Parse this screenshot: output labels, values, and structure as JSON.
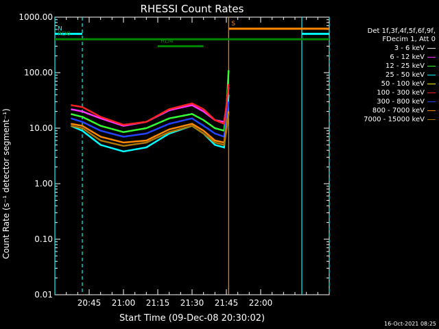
{
  "chart_data": {
    "type": "line",
    "title": "RHESSI Count Rates",
    "xlabel": "Start Time (09-Dec-08 20:30:02)",
    "ylabel": "Count Rate (s⁻¹ detector segment⁻¹)",
    "yscale": "log",
    "ylim": [
      0.01,
      1000
    ],
    "y_ticks": [
      "0.01",
      "0.10",
      "1.00",
      "10.00",
      "100.00",
      "1000.00"
    ],
    "xlim_minutes": [
      0,
      120
    ],
    "x_ticks": [
      {
        "label": "20:45",
        "minute": 15
      },
      {
        "label": "21:00",
        "minute": 30
      },
      {
        "label": "21:15",
        "minute": 45
      },
      {
        "label": "21:30",
        "minute": 60
      },
      {
        "label": "21:45",
        "minute": 75
      },
      {
        "label": "22:00",
        "minute": 90
      }
    ],
    "legend_header": [
      "Det 1f,3f,4f,5f,6f,9f,",
      "FDecim 1, Att 0"
    ],
    "timestamp": "16-Oct-2021 08:25",
    "series": [
      {
        "name": "3 - 6 keV",
        "color": "#e6e6e6",
        "draw": false
      },
      {
        "name": "6 - 12 keV",
        "color": "#ff33ff",
        "draw": true,
        "points": [
          [
            7,
            22
          ],
          [
            12,
            20
          ],
          [
            20,
            15
          ],
          [
            30,
            11
          ],
          [
            40,
            13
          ],
          [
            50,
            21
          ],
          [
            60,
            26
          ],
          [
            65,
            20
          ],
          [
            70,
            14
          ],
          [
            74,
            13
          ],
          [
            75,
            24
          ],
          [
            76,
            55
          ]
        ]
      },
      {
        "name": "12 - 25 keV",
        "color": "#33ff33",
        "draw": true,
        "points": [
          [
            7,
            18
          ],
          [
            12,
            16
          ],
          [
            20,
            11
          ],
          [
            30,
            8.5
          ],
          [
            40,
            10
          ],
          [
            50,
            15
          ],
          [
            60,
            18
          ],
          [
            65,
            14
          ],
          [
            70,
            10
          ],
          [
            74,
            9
          ],
          [
            75,
            20
          ],
          [
            76,
            110
          ]
        ]
      },
      {
        "name": "25 - 50 keV",
        "color": "#00ffff",
        "draw": true,
        "points": [
          [
            7,
            11
          ],
          [
            12,
            9
          ],
          [
            20,
            5
          ],
          [
            30,
            3.8
          ],
          [
            40,
            4.5
          ],
          [
            50,
            8
          ],
          [
            60,
            11
          ],
          [
            65,
            8
          ],
          [
            70,
            5
          ],
          [
            74,
            4.5
          ],
          [
            75,
            12
          ],
          [
            76,
            40
          ]
        ]
      },
      {
        "name": "50 - 100 keV",
        "color": "#ffff00",
        "draw": false
      },
      {
        "name": "100 - 300 keV",
        "color": "#ff2222",
        "draw": true,
        "points": [
          [
            7,
            26
          ],
          [
            12,
            24
          ],
          [
            20,
            16
          ],
          [
            30,
            11.5
          ],
          [
            40,
            13
          ],
          [
            50,
            22
          ],
          [
            60,
            28
          ],
          [
            65,
            22
          ],
          [
            70,
            14
          ],
          [
            74,
            12
          ],
          [
            75,
            25
          ],
          [
            76,
            62
          ]
        ]
      },
      {
        "name": "300 - 800 keV",
        "color": "#2244ff",
        "draw": true,
        "points": [
          [
            7,
            15
          ],
          [
            12,
            13
          ],
          [
            20,
            9
          ],
          [
            30,
            7
          ],
          [
            40,
            8
          ],
          [
            50,
            12
          ],
          [
            60,
            15
          ],
          [
            65,
            11
          ],
          [
            70,
            8
          ],
          [
            74,
            7
          ],
          [
            75,
            14
          ],
          [
            76,
            30
          ]
        ]
      },
      {
        "name": "800 - 7000 keV",
        "color": "#ff8800",
        "draw": true,
        "points": [
          [
            7,
            12
          ],
          [
            12,
            11
          ],
          [
            20,
            7
          ],
          [
            30,
            5.5
          ],
          [
            40,
            6
          ],
          [
            50,
            9.5
          ],
          [
            60,
            12
          ],
          [
            65,
            9
          ],
          [
            70,
            6
          ],
          [
            74,
            5.5
          ],
          [
            75,
            10
          ],
          [
            76,
            20
          ]
        ]
      },
      {
        "name": "7000 - 15000 keV",
        "color": "#aa7700",
        "draw": true,
        "points": [
          [
            7,
            11
          ],
          [
            12,
            10
          ],
          [
            20,
            6
          ],
          [
            30,
            4.8
          ],
          [
            40,
            5.5
          ],
          [
            50,
            8.5
          ],
          [
            60,
            11
          ],
          [
            65,
            8
          ],
          [
            70,
            5.5
          ],
          [
            74,
            5
          ],
          [
            75,
            9
          ],
          [
            76,
            18
          ]
        ]
      }
    ],
    "state_bars": [
      {
        "label": "N",
        "color": "#00ffff",
        "x0": 0,
        "x1": 12,
        "y": 500
      },
      {
        "label": "RD0",
        "color": "#008800",
        "x0": 0,
        "x1": 120,
        "y": 400
      },
      {
        "label": "RD4",
        "color": "#008800",
        "x0": 45,
        "x1": 65,
        "y": 300
      },
      {
        "label": "S",
        "color": "#ff8800",
        "x0": 76,
        "x1": 120,
        "y": 620
      },
      {
        "label": "",
        "color": "#00ffff",
        "x0": 108,
        "x1": 120,
        "y": 500
      }
    ],
    "vertical_markers": [
      {
        "minute": 0,
        "color": "#00ffff",
        "style": "solid"
      },
      {
        "minute": 12,
        "color": "#00ffff",
        "style": "dashed"
      },
      {
        "minute": 76,
        "color": "#ff8800",
        "style": "solid"
      },
      {
        "minute": 108,
        "color": "#00ffff",
        "style": "solid"
      },
      {
        "minute": 120,
        "color": "#00ffff",
        "style": "dashed"
      }
    ]
  }
}
